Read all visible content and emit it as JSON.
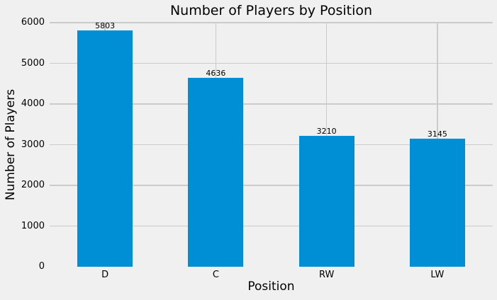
{
  "chart_data": {
    "type": "bar",
    "title": "Number of Players by Position",
    "xlabel": "Position",
    "ylabel": "Number of Players",
    "categories": [
      "D",
      "C",
      "RW",
      "LW"
    ],
    "values": [
      5803,
      4636,
      3210,
      3145
    ],
    "bar_labels": [
      "5803",
      "4636",
      "3210",
      "3145"
    ],
    "ylim": [
      0,
      6000
    ],
    "yticks": [
      0,
      1000,
      2000,
      3000,
      4000,
      5000,
      6000
    ],
    "grid": true,
    "legend": null,
    "style": {
      "background": "#f0f0f0",
      "bar_color": "#008fd5",
      "grid_color": "#cbcbcb",
      "text_color": "#000000"
    }
  }
}
